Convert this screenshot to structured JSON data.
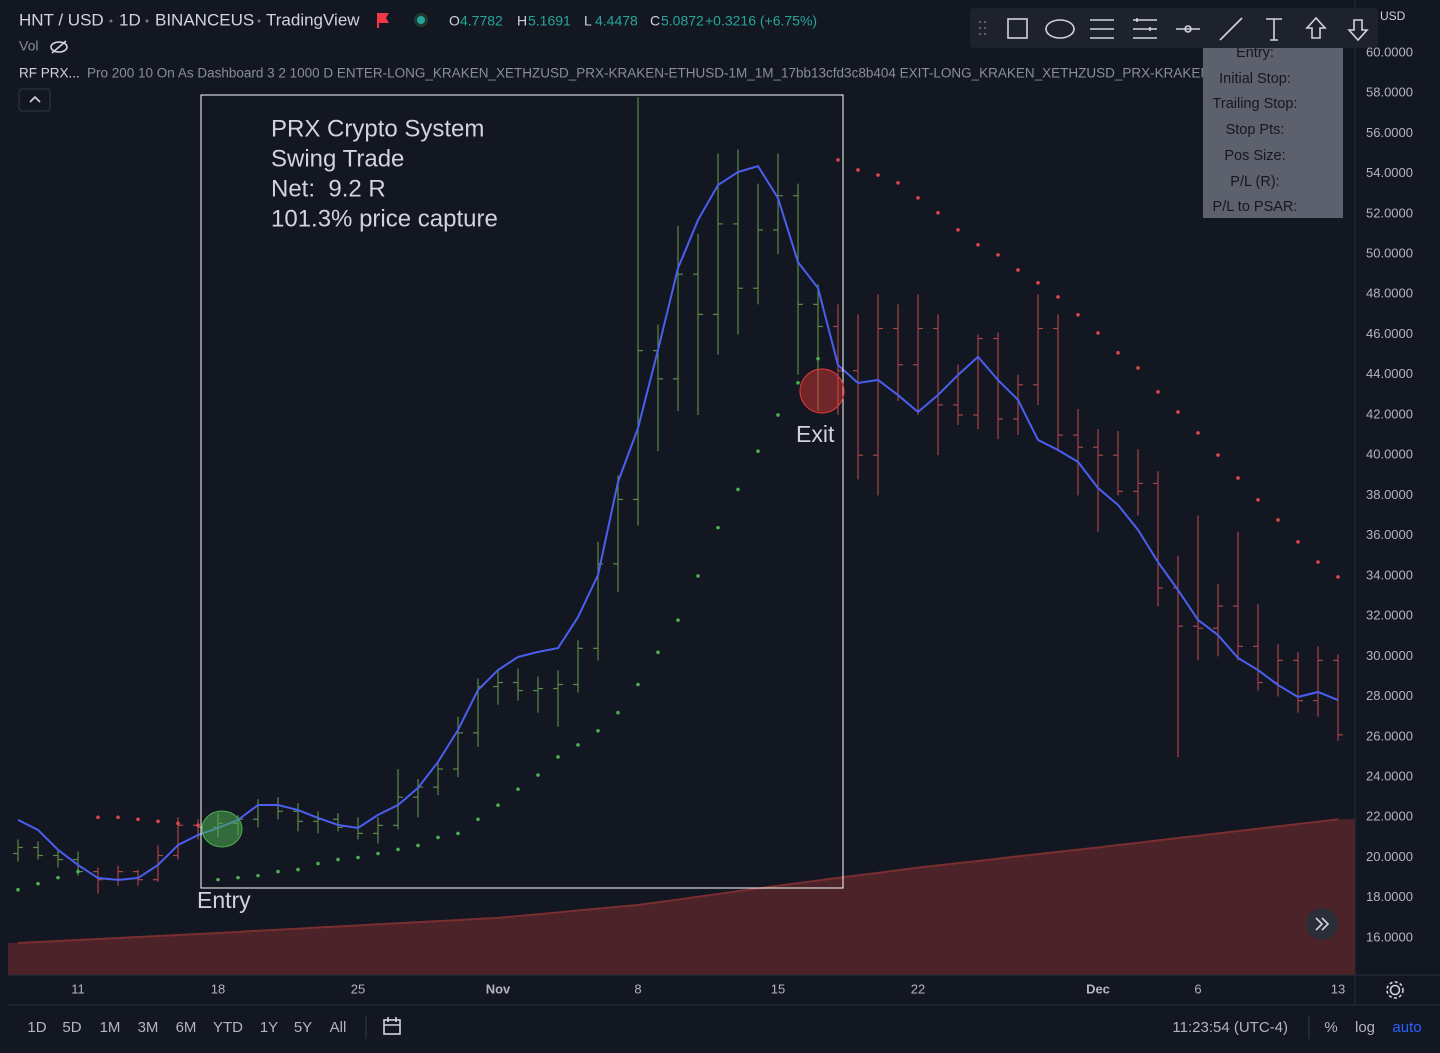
{
  "header": {
    "symbol": "HNT / USD",
    "interval": "1D",
    "exchange": "BINANCEUS",
    "source": "TradingView",
    "ohlc": [
      {
        "label": "O",
        "value": 4.7782
      },
      {
        "label": "H",
        "value": 5.1691
      },
      {
        "label": "L",
        "value": 4.4478
      },
      {
        "label": "C",
        "value": 5.0872
      }
    ],
    "change": "+0.3216 (+6.75%)",
    "vol": "Vol",
    "axis_currency": "USD"
  },
  "indicator": {
    "name": "RF PRX...",
    "args": "Pro 200 10 On As Dashboard 3 2 1000 D ENTER-LONG_KRAKEN_XETHZUSD_PRX-KRAKEN-ETHUSD-1M_1M_17bb13cfd3c8b404 EXIT-LONG_KRAKEN_XETHZUSD_PRX-KRAKEN-ETHU..."
  },
  "dashboard": [
    "Entry:",
    "Initial Stop:",
    "Trailing Stop:",
    "Stop Pts:",
    "Pos Size:",
    "P/L (R):",
    "P/L to PSAR:"
  ],
  "annotation": {
    "lines": [
      "PRX Crypto System",
      "Swing Trade",
      "Net:  9.2 R",
      "101.3% price capture"
    ],
    "entry": "Entry",
    "exit": "Exit"
  },
  "chart_data": {
    "type": "ohlc",
    "categories": [
      null,
      null,
      null,
      "11",
      null,
      null,
      null,
      null,
      null,
      null,
      "18",
      null,
      null,
      null,
      null,
      null,
      null,
      "25",
      null,
      null,
      null,
      null,
      null,
      null,
      "Nov",
      null,
      null,
      null,
      null,
      null,
      null,
      "8",
      null,
      null,
      null,
      null,
      null,
      null,
      "15",
      null,
      null,
      null,
      null,
      null,
      null,
      "22",
      null,
      null,
      null,
      null,
      null,
      null,
      null,
      null,
      "Dec",
      null,
      null,
      null,
      null,
      "6",
      null,
      null,
      null,
      null,
      null,
      null,
      "13"
    ],
    "open": [
      20.2,
      20.5,
      20.1,
      19.9,
      19.3,
      18.9,
      19.3,
      18.9,
      20.1,
      21.6,
      21.5,
      21.7,
      21.9,
      22.6,
      22.3,
      21.8,
      21.9,
      21.5,
      21.2,
      21.6,
      23.0,
      23.5,
      24.4,
      26.2,
      28.5,
      28.7,
      28.3,
      28.4,
      28.6,
      30.4,
      34.6,
      37.8,
      45.2,
      43.8,
      49.0,
      47.0,
      51.5,
      48.3,
      51.2,
      52.9,
      47.5,
      46.4,
      44.2,
      40.0,
      46.3,
      44.5,
      46.3,
      42.5,
      42.0,
      45.8,
      41.8,
      43.5,
      46.3,
      41.0,
      40.4,
      40.0,
      38.2,
      38.6,
      33.4,
      31.5,
      31.4,
      32.5,
      30.5,
      28.7,
      29.8,
      27.8,
      29.8
    ],
    "high": [
      20.9,
      20.8,
      20.4,
      20.3,
      19.5,
      19.6,
      19.4,
      20.6,
      22.0,
      21.9,
      22.2,
      22.1,
      22.9,
      23.0,
      22.7,
      22.3,
      22.2,
      22.0,
      22.0,
      24.4,
      23.9,
      24.8,
      27.0,
      28.9,
      29.3,
      29.4,
      29.0,
      29.3,
      30.8,
      35.7,
      39.0,
      57.8,
      46.5,
      51.4,
      51.0,
      55.0,
      55.2,
      53.5,
      55.0,
      53.5,
      48.5,
      47.5,
      47.0,
      48.0,
      47.5,
      48.0,
      47.0,
      44.5,
      46.0,
      46.1,
      44.0,
      48.0,
      47.0,
      42.3,
      41.3,
      41.2,
      40.3,
      39.2,
      35.0,
      37.0,
      33.6,
      36.2,
      32.6,
      30.6,
      30.2,
      30.5,
      30.1
    ],
    "low": [
      19.8,
      19.9,
      19.5,
      19.1,
      18.2,
      18.6,
      18.6,
      18.8,
      19.9,
      20.9,
      21.0,
      21.1,
      21.5,
      21.9,
      21.3,
      21.2,
      21.3,
      20.9,
      20.7,
      21.4,
      22.0,
      23.1,
      24.0,
      25.5,
      27.6,
      27.8,
      27.2,
      26.5,
      28.2,
      29.8,
      33.2,
      36.5,
      40.2,
      42.2,
      42.0,
      45.0,
      46.0,
      47.5,
      50.0,
      44.0,
      42.2,
      42.0,
      38.8,
      38.0,
      42.7,
      42.0,
      40.0,
      41.5,
      41.3,
      40.8,
      41.0,
      42.5,
      40.2,
      38.0,
      36.2,
      38.0,
      37.0,
      32.5,
      25.0,
      29.8,
      30.0,
      29.8,
      28.3,
      28.0,
      27.2,
      27.0,
      25.8
    ],
    "close": [
      20.5,
      20.1,
      19.9,
      19.3,
      18.9,
      19.3,
      18.9,
      20.1,
      21.6,
      21.5,
      21.7,
      21.9,
      22.6,
      22.3,
      21.8,
      21.9,
      21.5,
      21.2,
      21.6,
      23.0,
      23.5,
      24.4,
      26.2,
      28.5,
      28.7,
      28.3,
      28.4,
      28.6,
      30.4,
      34.6,
      37.8,
      45.2,
      43.8,
      49.0,
      47.0,
      51.5,
      48.3,
      51.2,
      52.9,
      47.5,
      46.4,
      44.2,
      40.0,
      46.3,
      44.5,
      46.3,
      42.5,
      42.0,
      45.8,
      41.8,
      43.5,
      46.3,
      41.0,
      40.4,
      40.0,
      38.2,
      38.6,
      33.4,
      31.5,
      31.4,
      32.5,
      30.5,
      28.7,
      29.8,
      27.8,
      29.8,
      26.1
    ],
    "bar_colors": {
      "long": "#5b8a48",
      "short": "#a84547"
    },
    "series": [
      {
        "kind": "area",
        "color": "#7a2e30",
        "values": [
          15.75,
          15.8,
          15.85,
          15.9,
          15.95,
          16.0,
          16.05,
          16.1,
          16.15,
          16.2,
          16.25,
          16.3,
          16.36,
          16.41,
          16.46,
          16.52,
          16.57,
          16.62,
          16.68,
          16.73,
          16.79,
          16.84,
          16.89,
          16.95,
          17.0,
          17.09,
          17.18,
          17.27,
          17.37,
          17.46,
          17.55,
          17.64,
          17.78,
          17.91,
          18.05,
          18.19,
          18.33,
          18.46,
          18.6,
          18.73,
          18.86,
          18.99,
          19.11,
          19.24,
          19.37,
          19.5,
          19.61,
          19.72,
          19.83,
          19.94,
          20.06,
          20.17,
          20.28,
          20.39,
          20.5,
          20.62,
          20.73,
          20.85,
          20.97,
          21.08,
          21.2,
          21.32,
          21.43,
          21.55,
          21.67,
          21.78,
          21.9
        ]
      },
      {
        "kind": "line",
        "color": "#4a5ff0",
        "values": [
          21.87,
          21.37,
          20.38,
          19.63,
          18.98,
          18.89,
          18.98,
          19.63,
          20.62,
          21.12,
          21.47,
          21.87,
          22.61,
          22.61,
          22.36,
          21.97,
          21.62,
          21.47,
          22.12,
          22.61,
          23.46,
          24.75,
          26.34,
          28.33,
          29.32,
          29.97,
          30.22,
          30.41,
          31.95,
          34.04,
          38.67,
          41.35,
          45.23,
          49.3,
          51.69,
          53.43,
          54.08,
          54.37,
          52.78,
          49.6,
          48.31,
          44.48,
          43.59,
          43.74,
          42.99,
          42.15,
          42.99,
          43.99,
          44.89,
          43.74,
          42.75,
          40.76,
          40.26,
          39.67,
          38.37,
          37.53,
          36.29,
          34.69,
          33.3,
          31.81,
          31.06,
          29.92,
          29.32,
          28.58,
          27.98,
          28.23,
          27.83
        ]
      },
      {
        "kind": "dots",
        "role": "long",
        "color": "#4caf50",
        "values": [
          18.4,
          18.7,
          19.0,
          19.3,
          null,
          null,
          null,
          null,
          null,
          null,
          18.9,
          19.0,
          19.1,
          19.3,
          19.4,
          19.7,
          19.9,
          20.0,
          20.2,
          20.4,
          20.6,
          21.0,
          21.2,
          21.9,
          22.6,
          23.4,
          24.1,
          25.0,
          25.6,
          26.3,
          27.2,
          28.6,
          30.2,
          31.8,
          34.0,
          36.4,
          38.3,
          40.2,
          42.0,
          43.6,
          44.8,
          null,
          null,
          null,
          null,
          null,
          null,
          null,
          null,
          null,
          null,
          null,
          null,
          null,
          null,
          null,
          null,
          null,
          null,
          null,
          null,
          null,
          null,
          null,
          null,
          null,
          null
        ]
      },
      {
        "kind": "dots",
        "role": "short",
        "color": "#e0474c",
        "values": [
          null,
          null,
          null,
          null,
          22.0,
          22.0,
          21.9,
          21.8,
          21.7,
          21.6,
          null,
          null,
          null,
          null,
          null,
          null,
          null,
          null,
          null,
          null,
          null,
          null,
          null,
          null,
          null,
          null,
          null,
          null,
          null,
          null,
          null,
          null,
          null,
          null,
          null,
          null,
          null,
          null,
          null,
          null,
          null,
          54.68,
          54.18,
          53.93,
          53.54,
          52.79,
          52.05,
          51.2,
          50.46,
          49.96,
          49.21,
          48.57,
          47.87,
          46.98,
          46.08,
          45.09,
          44.34,
          43.15,
          42.15,
          41.11,
          40.01,
          38.87,
          37.78,
          36.78,
          35.69,
          34.69,
          33.95
        ]
      }
    ],
    "ylim": [
      14.16,
      62.63
    ],
    "yticks": [
      {
        "value": 16,
        "label": "16.0000"
      },
      {
        "value": 18,
        "label": "18.0000"
      },
      {
        "value": 20,
        "label": "20.0000"
      },
      {
        "value": 22,
        "label": "22.0000"
      },
      {
        "value": 24,
        "label": "24.0000"
      },
      {
        "value": 26,
        "label": "26.0000"
      },
      {
        "value": 28,
        "label": "28.0000"
      },
      {
        "value": 30,
        "label": "30.0000"
      },
      {
        "value": 32,
        "label": "32.0000"
      },
      {
        "value": 34,
        "label": "34.0000"
      },
      {
        "value": 36,
        "label": "36.0000"
      },
      {
        "value": 38,
        "label": "38.0000"
      },
      {
        "value": 40,
        "label": "40.0000"
      },
      {
        "value": 42,
        "label": "42.0000"
      },
      {
        "value": 44,
        "label": "44.0000"
      },
      {
        "value": 46,
        "label": "46.0000"
      },
      {
        "value": 48,
        "label": "48.0000"
      },
      {
        "value": 50,
        "label": "50.0000"
      },
      {
        "value": 52,
        "label": "52.0000"
      },
      {
        "value": 54,
        "label": "54.0000"
      },
      {
        "value": 56,
        "label": "56.0000"
      },
      {
        "value": 58,
        "label": "58.0000"
      },
      {
        "value": 60,
        "label": "60.0000"
      }
    ]
  },
  "footer": {
    "ranges": [
      "1D",
      "5D",
      "1M",
      "3M",
      "6M",
      "YTD",
      "1Y",
      "5Y",
      "All"
    ],
    "time": "11:23:54 (UTC-4)",
    "options": [
      "%",
      "log",
      "auto"
    ]
  }
}
